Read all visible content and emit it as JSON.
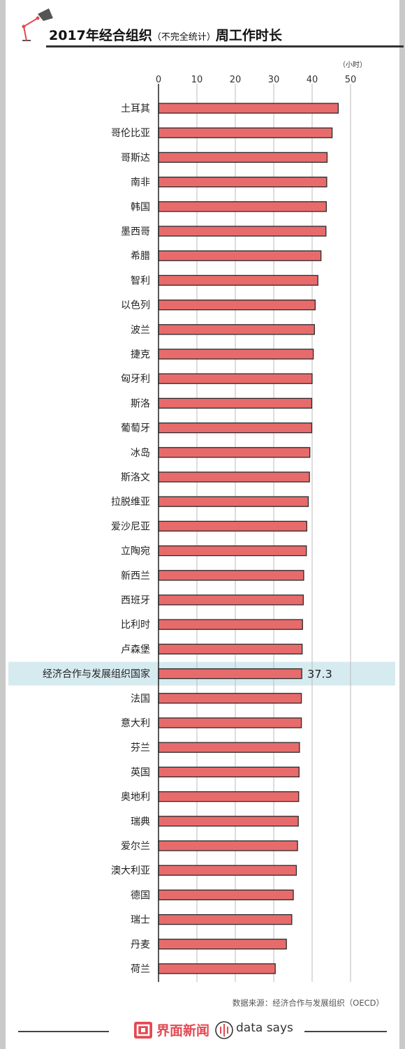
{
  "header": {
    "title_main": "2017年经合组织",
    "title_paren": "（不完全统计）",
    "title_tail": "周工作时长",
    "icon": "desk-lamp-icon"
  },
  "chart_data": {
    "type": "bar",
    "orientation": "horizontal",
    "unit_label": "（小时）",
    "xlim": [
      0,
      50
    ],
    "ticks": [
      0,
      10,
      20,
      30,
      40,
      50
    ],
    "grid": true,
    "bar_color": "#e86b6b",
    "highlight_color": "#d6ebf0",
    "categories": [
      "土耳其",
      "哥伦比亚",
      "哥斯达",
      "南非",
      "韩国",
      "墨西哥",
      "希腊",
      "智利",
      "以色列",
      "波兰",
      "捷克",
      "匈牙利",
      "斯洛",
      "葡萄牙",
      "冰岛",
      "斯洛文",
      "拉脱维亚",
      "爱沙尼亚",
      "立陶宛",
      "新西兰",
      "西班牙",
      "比利时",
      "卢森堡",
      "经济合作与发展组织国家",
      "法国",
      "意大利",
      "芬兰",
      "英国",
      "奥地利",
      "瑞典",
      "爱尔兰",
      "澳大利亚",
      "德国",
      "瑞士",
      "丹麦",
      "荷兰"
    ],
    "values": [
      46.8,
      45.2,
      43.9,
      43.8,
      43.7,
      43.6,
      42.3,
      41.5,
      40.8,
      40.6,
      40.3,
      40.0,
      39.9,
      39.9,
      39.4,
      39.3,
      39.0,
      38.6,
      38.5,
      37.8,
      37.7,
      37.5,
      37.4,
      37.3,
      37.2,
      37.2,
      36.7,
      36.6,
      36.5,
      36.4,
      36.2,
      35.9,
      35.1,
      34.7,
      33.3,
      30.4
    ],
    "highlight_category": "经济合作与发展组织国家",
    "highlight_label": "37.3"
  },
  "footer": {
    "source": "数据来源：经济合作与发展组织（OECD）",
    "brand_cn": "界面新闻",
    "brand_en": "data says"
  }
}
